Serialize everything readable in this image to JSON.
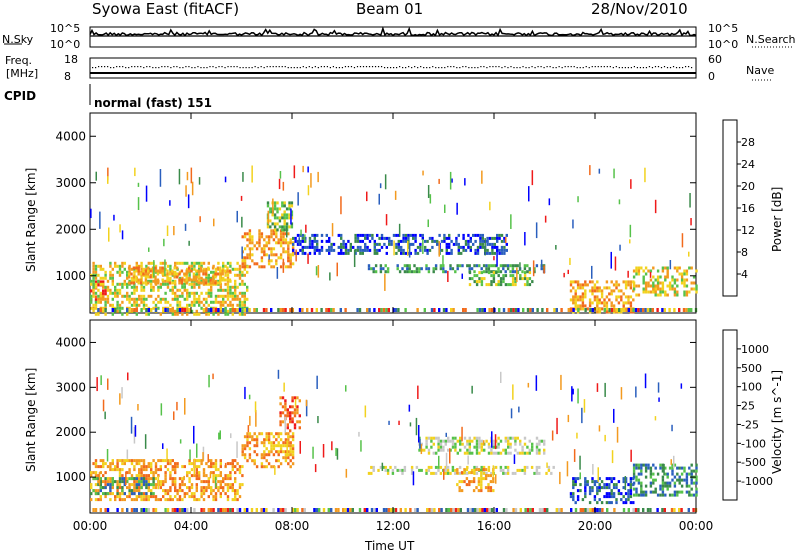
{
  "header": {
    "station": "Syowa East (fitACF)",
    "beam": "Beam 01",
    "date": "28/Nov/2010"
  },
  "params_panel": {
    "nsky_label": "N.Sky",
    "nsearch_label": "N.Search",
    "nsky_ticks": [
      "10^5",
      "10^0"
    ],
    "nsearch_ticks": [
      "10^5",
      "10^0"
    ],
    "freq_label": "Freq.",
    "freq_unit": "[MHz]",
    "freq_ticks": [
      "18",
      "8"
    ],
    "nave_label": "Nave",
    "nave_ticks": [
      "60",
      "0"
    ],
    "cpid_label": "CPID",
    "cpid_text": "normal (fast) 151"
  },
  "xaxis": {
    "label": "Time UT",
    "ticks": [
      "00:00",
      "04:00",
      "08:00",
      "12:00",
      "16:00",
      "20:00",
      "00:00"
    ]
  },
  "chart_data": [
    {
      "type": "heatmap",
      "title": "",
      "xlabel": "Time UT",
      "ylabel": "Slant Range [km]",
      "xlim_hours": [
        0,
        24
      ],
      "ylim": [
        200,
        4500
      ],
      "yticks": [
        1000,
        2000,
        3000,
        4000
      ],
      "colorbar": {
        "label": "Power [dB]",
        "ticks": [
          "4",
          "8",
          "12",
          "16",
          "20",
          "24",
          "28"
        ],
        "colors": [
          "#0000ff",
          "#2a5fbe",
          "#3a8a4a",
          "#56c24a",
          "#f2d21e",
          "#f39a1f",
          "#f26a1c",
          "#ef1a1a"
        ]
      },
      "regions": [
        {
          "t0": 0.0,
          "t1": 0.6,
          "r0": 500,
          "r1": 900,
          "level": 7
        },
        {
          "t0": 0.0,
          "t1": 6.2,
          "r0": 200,
          "r1": 1300,
          "level": 4
        },
        {
          "t0": 1.5,
          "t1": 5.5,
          "r0": 850,
          "r1": 1200,
          "level": 5
        },
        {
          "t0": 6.0,
          "t1": 8.0,
          "r0": 1200,
          "r1": 2000,
          "level": 5
        },
        {
          "t0": 7.0,
          "t1": 8.0,
          "r0": 2000,
          "r1": 2600,
          "level": 3
        },
        {
          "t0": 8.0,
          "t1": 16.5,
          "r0": 1500,
          "r1": 1900,
          "level": 1
        },
        {
          "t0": 11.0,
          "t1": 18.0,
          "r0": 1100,
          "r1": 1250,
          "level": 2
        },
        {
          "t0": 15.0,
          "t1": 17.5,
          "r0": 800,
          "r1": 1100,
          "level": 3
        },
        {
          "t0": 19.0,
          "t1": 21.5,
          "r0": 200,
          "r1": 900,
          "level": 5
        },
        {
          "t0": 21.5,
          "t1": 24.0,
          "r0": 600,
          "r1": 1200,
          "level": 4
        }
      ]
    },
    {
      "type": "heatmap",
      "title": "",
      "xlabel": "Time UT",
      "ylabel": "Slant Range [km]",
      "xlim_hours": [
        0,
        24
      ],
      "ylim": [
        200,
        4500
      ],
      "yticks": [
        1000,
        2000,
        3000,
        4000
      ],
      "colorbar": {
        "label": "Velocity [m s^-1]",
        "ticks": [
          "1000",
          "500",
          "100",
          "25",
          "-25",
          "-100",
          "-500",
          "-1000"
        ],
        "colors": [
          "#0000ff",
          "#2a5fbe",
          "#3a8a4a",
          "#56c24a",
          "#c8c8c8",
          "#f2d21e",
          "#f39a1f",
          "#f26a1c",
          "#ef1a1a"
        ]
      },
      "regions": [
        {
          "t0": 0.0,
          "t1": 6.0,
          "r0": 500,
          "r1": 1400,
          "level": 6
        },
        {
          "t0": 0.0,
          "t1": 2.5,
          "r0": 600,
          "r1": 1000,
          "level": 2
        },
        {
          "t0": 6.0,
          "t1": 8.0,
          "r0": 1200,
          "r1": 2000,
          "level": 6
        },
        {
          "t0": 7.5,
          "t1": 8.3,
          "r0": 2000,
          "r1": 2800,
          "level": 7
        },
        {
          "t0": 11.0,
          "t1": 18.5,
          "r0": 1100,
          "r1": 1250,
          "level": 4
        },
        {
          "t0": 13.0,
          "t1": 18.0,
          "r0": 1500,
          "r1": 1900,
          "level": 4
        },
        {
          "t0": 14.5,
          "t1": 16.0,
          "r0": 700,
          "r1": 1200,
          "level": 6
        },
        {
          "t0": 19.0,
          "t1": 21.5,
          "r0": 400,
          "r1": 1000,
          "level": 1
        },
        {
          "t0": 21.5,
          "t1": 24.0,
          "r0": 600,
          "r1": 1300,
          "level": 2
        }
      ]
    }
  ]
}
